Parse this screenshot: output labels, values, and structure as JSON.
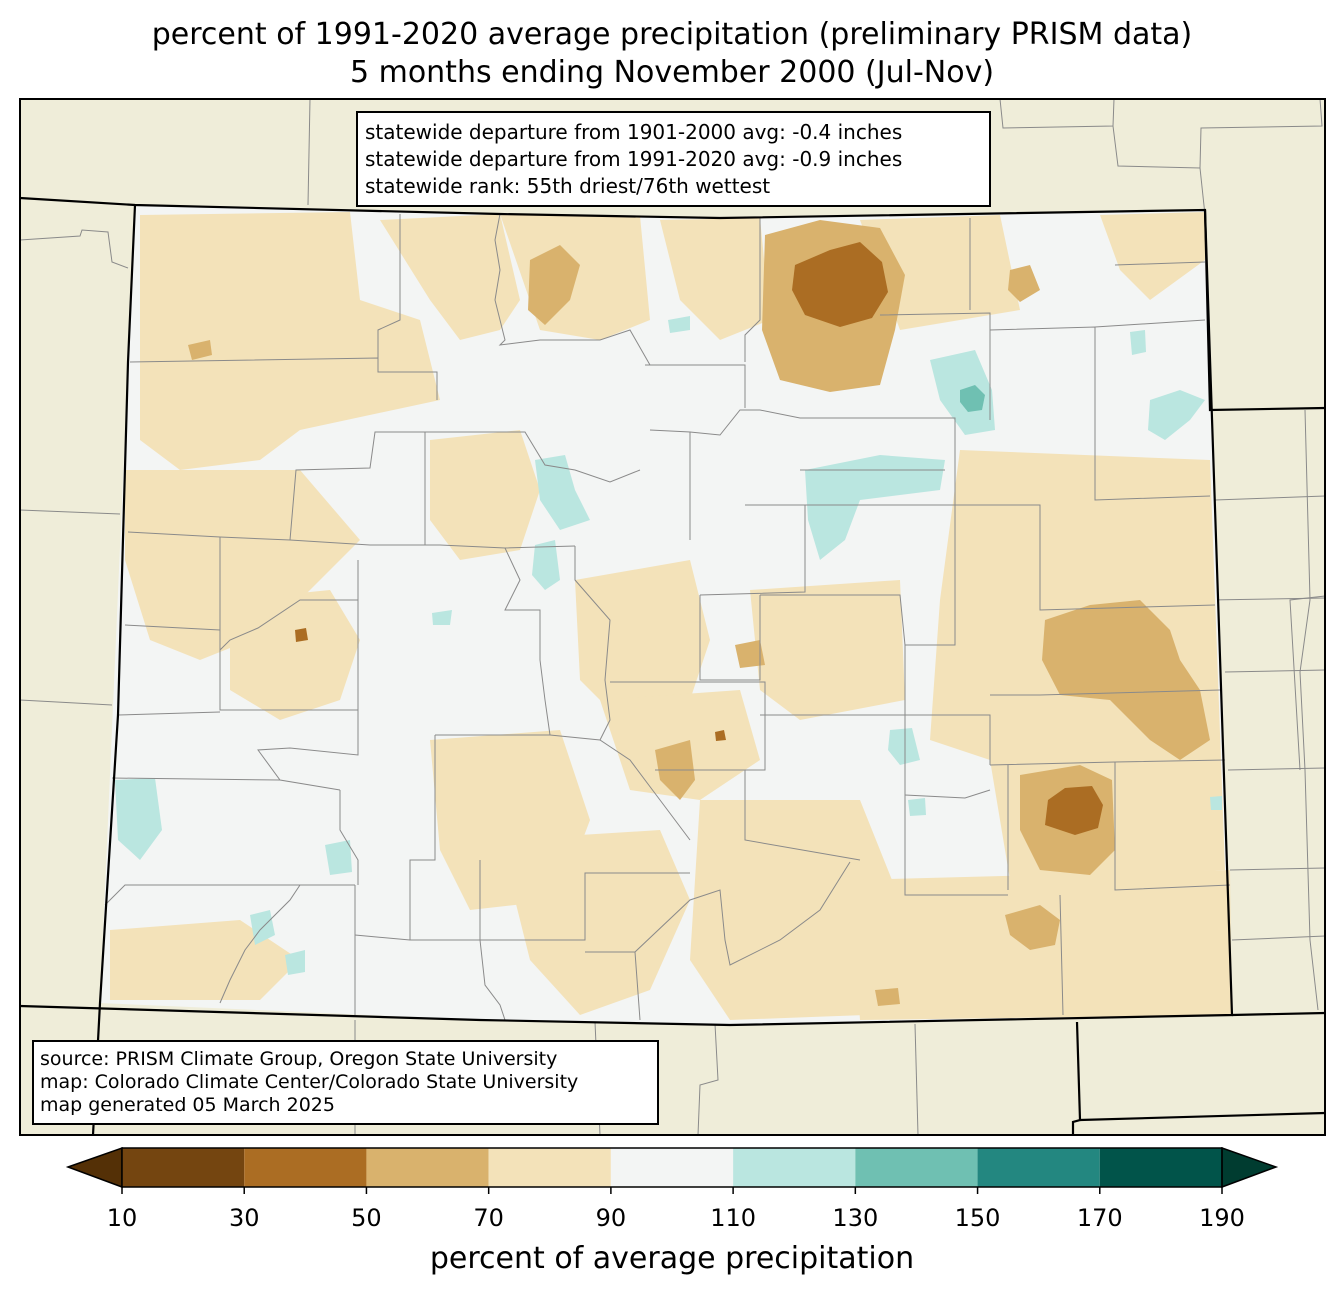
{
  "title": {
    "line1": "percent of 1991-2020 average precipitation (preliminary PRISM data)",
    "line2": "5 months ending November 2000 (Jul-Nov)"
  },
  "stats_box": {
    "line1": "statewide departure from 1901-2000 avg: -0.4 inches",
    "line2": "statewide departure from 1991-2020 avg: -0.9 inches",
    "line3": "statewide rank: 55th driest/76th wettest"
  },
  "credits_box": {
    "line1": "source: PRISM Climate Group, Oregon State University",
    "line2": "map: Colorado Climate Center/Colorado State University",
    "line3": "map generated 05 March 2025"
  },
  "colorbar": {
    "label": "percent of average precipitation",
    "ticks": [
      "10",
      "30",
      "50",
      "70",
      "90",
      "110",
      "130",
      "150",
      "170",
      "190"
    ],
    "bin_colors": [
      "#744510",
      "#ab6d23",
      "#d9b26d",
      "#f3e2b9",
      "#f3f5f4",
      "#bae6e0",
      "#6fc0b2",
      "#238780",
      "#01544a"
    ],
    "under_color": "#543006",
    "over_color": "#003c30"
  },
  "map": {
    "background_color": "#efedd9",
    "state_fill_default": "#f3f5f4"
  }
}
